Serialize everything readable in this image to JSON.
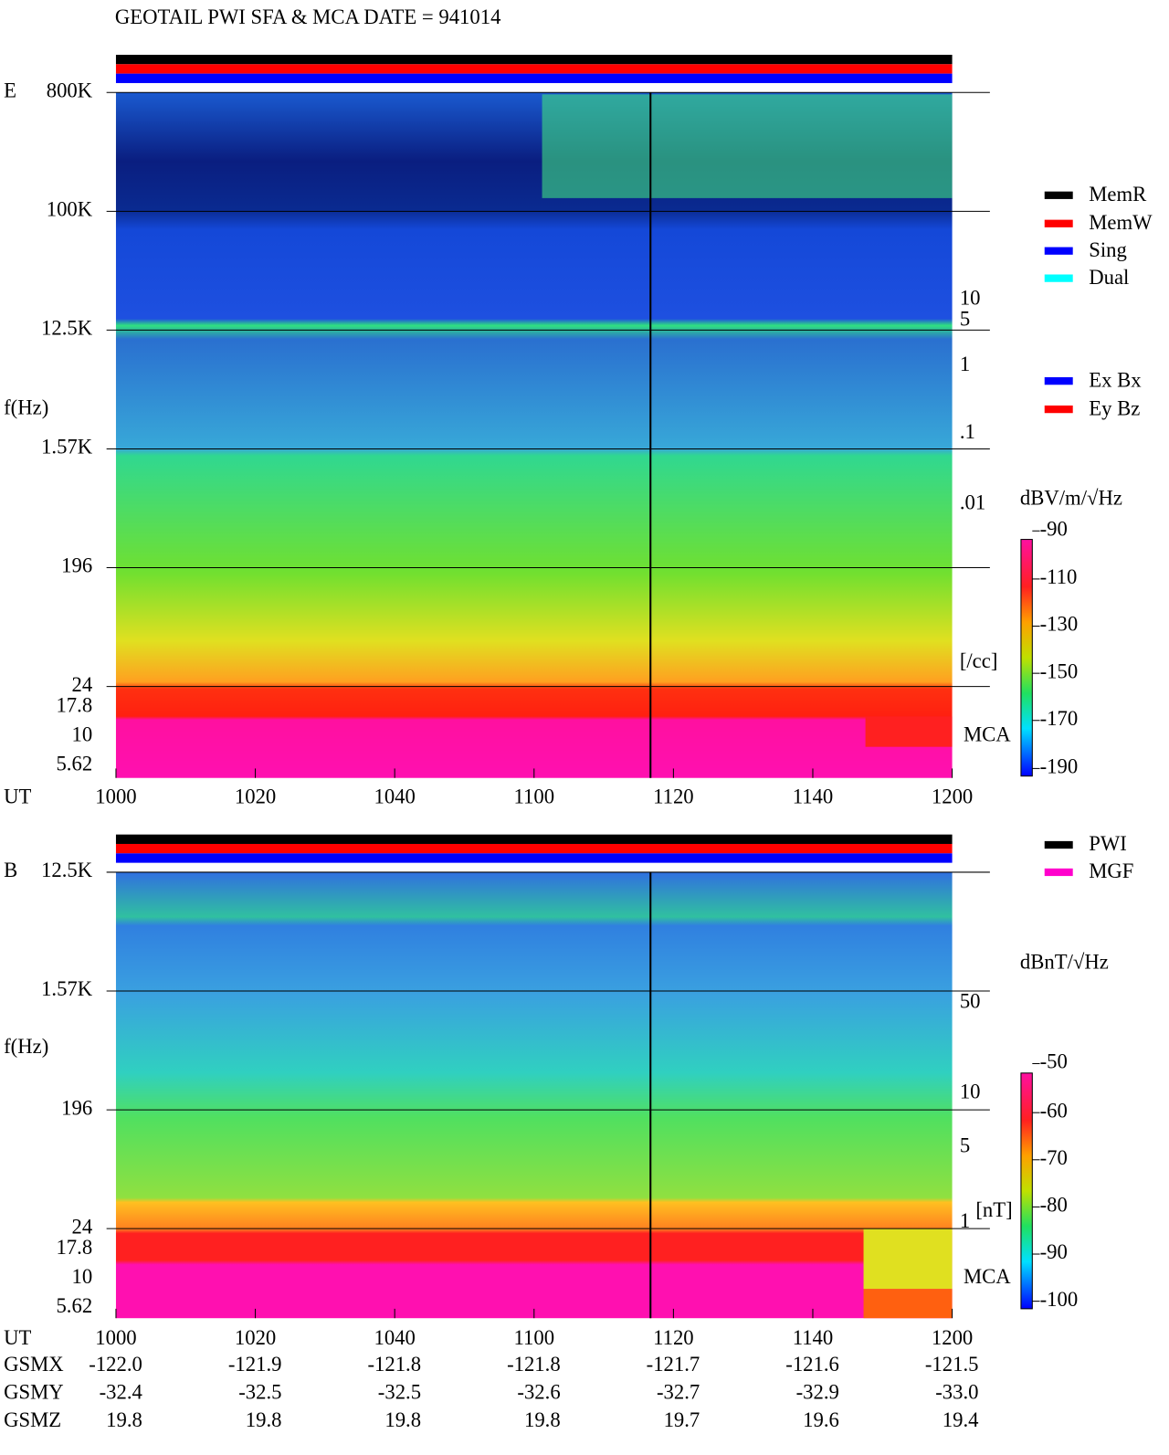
{
  "title": "GEOTAIL  PWI SFA & MCA   DATE = 941014",
  "panels": [
    {
      "label": "E",
      "y_axis_label": "f(Hz)",
      "y_ticks": [
        "800K",
        "100K",
        "12.5K",
        "1.57K",
        "196",
        "24",
        "17.8",
        "10",
        "5.62"
      ],
      "x_axis_label": "UT",
      "x_ticks": [
        "1000",
        "1020",
        "1040",
        "1100",
        "1120",
        "1140",
        "1200"
      ],
      "right_ticks": [
        "10",
        "5",
        "1",
        ".1",
        ".01",
        "[/cc]"
      ],
      "right_color": "#ff0000",
      "mca_label": "MCA",
      "colorbar": {
        "title": "dBV/m/√Hz",
        "ticks": [
          "-90",
          "-110",
          "-130",
          "-150",
          "-170",
          "-190"
        ]
      },
      "legend": [
        {
          "name": "MemR",
          "color": "#000000"
        },
        {
          "name": "MemW",
          "color": "#ff0000"
        },
        {
          "name": "Sing",
          "color": "#0000ff"
        },
        {
          "name": "Dual",
          "color": "#00ffff"
        }
      ],
      "legend2": [
        {
          "name": "Ex Bx",
          "color": "#0000ff"
        },
        {
          "name": "Ey Bz",
          "color": "#ff0000"
        }
      ]
    },
    {
      "label": "B",
      "y_axis_label": "f(Hz)",
      "y_ticks": [
        "12.5K",
        "1.57K",
        "196",
        "24",
        "17.8",
        "10",
        "5.62"
      ],
      "x_axis_label": "UT",
      "x_ticks": [
        "1000",
        "1020",
        "1040",
        "1100",
        "1120",
        "1140",
        "1200"
      ],
      "right_ticks": [
        "50",
        "10",
        "5",
        "1",
        "[nT]"
      ],
      "right_color": "#ff0000",
      "mca_label": "MCA",
      "colorbar": {
        "title": "dBnT/√Hz",
        "ticks": [
          "-50",
          "-60",
          "-70",
          "-80",
          "-90",
          "-100"
        ]
      },
      "legend": [
        {
          "name": "PWI",
          "color": "#000000"
        },
        {
          "name": "MGF",
          "color": "#ff00cc"
        }
      ]
    }
  ],
  "orbit": {
    "rows": [
      {
        "label": "GSMX",
        "values": [
          "-122.0",
          "-121.9",
          "-121.8",
          "-121.8",
          "-121.7",
          "-121.6",
          "-121.5"
        ]
      },
      {
        "label": "GSMY",
        "values": [
          "-32.4",
          "-32.5",
          "-32.5",
          "-32.6",
          "-32.7",
          "-32.9",
          "-33.0"
        ]
      },
      {
        "label": "GSMZ",
        "values": [
          "19.8",
          "19.8",
          "19.8",
          "19.8",
          "19.7",
          "19.6",
          "19.4"
        ]
      }
    ]
  }
}
